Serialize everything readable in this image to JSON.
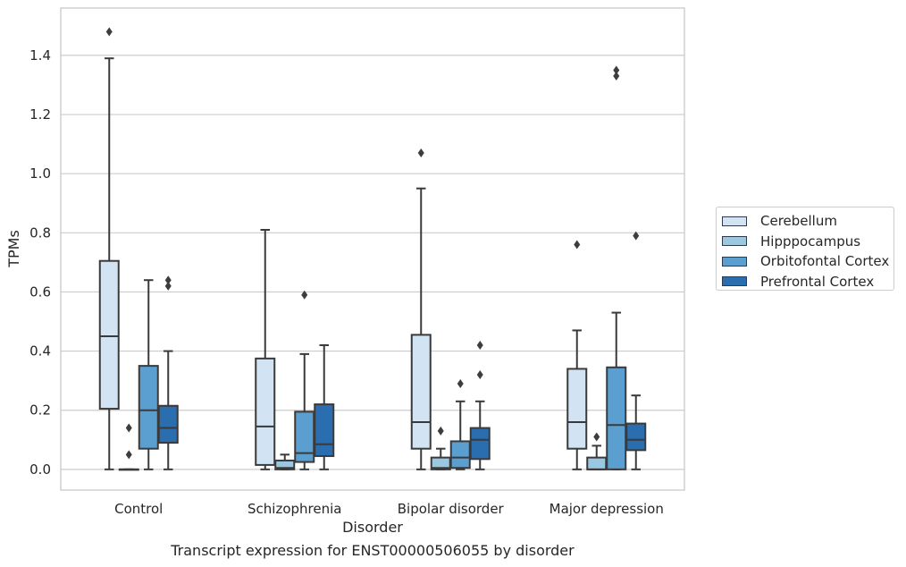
{
  "chart_data": {
    "type": "box",
    "title": "",
    "caption": "Transcript expression for ENST00000506055 by disorder",
    "xlabel": "Disorder",
    "ylabel": "TPMs",
    "ylim": [
      -0.07,
      1.56
    ],
    "yticks": [
      "0.0",
      "0.2",
      "0.4",
      "0.6",
      "0.8",
      "1.0",
      "1.2",
      "1.4"
    ],
    "grid": "horizontal",
    "legend_position": "right",
    "categories": [
      "Control",
      "Schizophrenia",
      "Bipolar disorder",
      "Major depression"
    ],
    "series": [
      {
        "name": "Cerebellum",
        "color": "#d2e3f3",
        "boxes": [
          {
            "min": 0.0,
            "q1": 0.205,
            "median": 0.45,
            "q3": 0.705,
            "max": 1.39,
            "outliers": [
              1.48
            ]
          },
          {
            "min": 0.0,
            "q1": 0.015,
            "median": 0.145,
            "q3": 0.375,
            "max": 0.81,
            "outliers": []
          },
          {
            "min": 0.0,
            "q1": 0.07,
            "median": 0.16,
            "q3": 0.455,
            "max": 0.95,
            "outliers": [
              1.07
            ]
          },
          {
            "min": 0.0,
            "q1": 0.07,
            "median": 0.16,
            "q3": 0.34,
            "max": 0.47,
            "outliers": [
              0.76
            ]
          }
        ]
      },
      {
        "name": "Hipppocampus",
        "color": "#9ac8e0",
        "boxes": [
          {
            "min": 0.0,
            "q1": 0.0,
            "median": 0.0,
            "q3": 0.0,
            "max": 0.0,
            "outliers": [
              0.14,
              0.05
            ]
          },
          {
            "min": 0.0,
            "q1": 0.0,
            "median": 0.005,
            "q3": 0.03,
            "max": 0.05,
            "outliers": []
          },
          {
            "min": 0.0,
            "q1": 0.0,
            "median": 0.005,
            "q3": 0.04,
            "max": 0.07,
            "outliers": [
              0.13
            ]
          },
          {
            "min": 0.0,
            "q1": 0.0,
            "median": 0.0,
            "q3": 0.04,
            "max": 0.08,
            "outliers": [
              0.11
            ]
          }
        ]
      },
      {
        "name": "Orbitofontal Cortex",
        "color": "#5a9fcf",
        "boxes": [
          {
            "min": 0.0,
            "q1": 0.07,
            "median": 0.2,
            "q3": 0.35,
            "max": 0.64,
            "outliers": []
          },
          {
            "min": 0.0,
            "q1": 0.025,
            "median": 0.055,
            "q3": 0.195,
            "max": 0.39,
            "outliers": [
              0.59
            ]
          },
          {
            "min": 0.0,
            "q1": 0.005,
            "median": 0.04,
            "q3": 0.095,
            "max": 0.23,
            "outliers": [
              0.29
            ]
          },
          {
            "min": 0.0,
            "q1": 0.0,
            "median": 0.15,
            "q3": 0.345,
            "max": 0.53,
            "outliers": [
              1.35,
              1.33
            ]
          }
        ]
      },
      {
        "name": "Prefrontal Cortex",
        "color": "#2b6eaf",
        "boxes": [
          {
            "min": 0.0,
            "q1": 0.09,
            "median": 0.14,
            "q3": 0.215,
            "max": 0.4,
            "outliers": [
              0.64,
              0.62
            ]
          },
          {
            "min": 0.0,
            "q1": 0.045,
            "median": 0.085,
            "q3": 0.22,
            "max": 0.42,
            "outliers": []
          },
          {
            "min": 0.0,
            "q1": 0.035,
            "median": 0.1,
            "q3": 0.14,
            "max": 0.23,
            "outliers": [
              0.42,
              0.32
            ]
          },
          {
            "min": 0.0,
            "q1": 0.065,
            "median": 0.1,
            "q3": 0.155,
            "max": 0.25,
            "outliers": [
              0.79
            ]
          }
        ]
      }
    ]
  }
}
